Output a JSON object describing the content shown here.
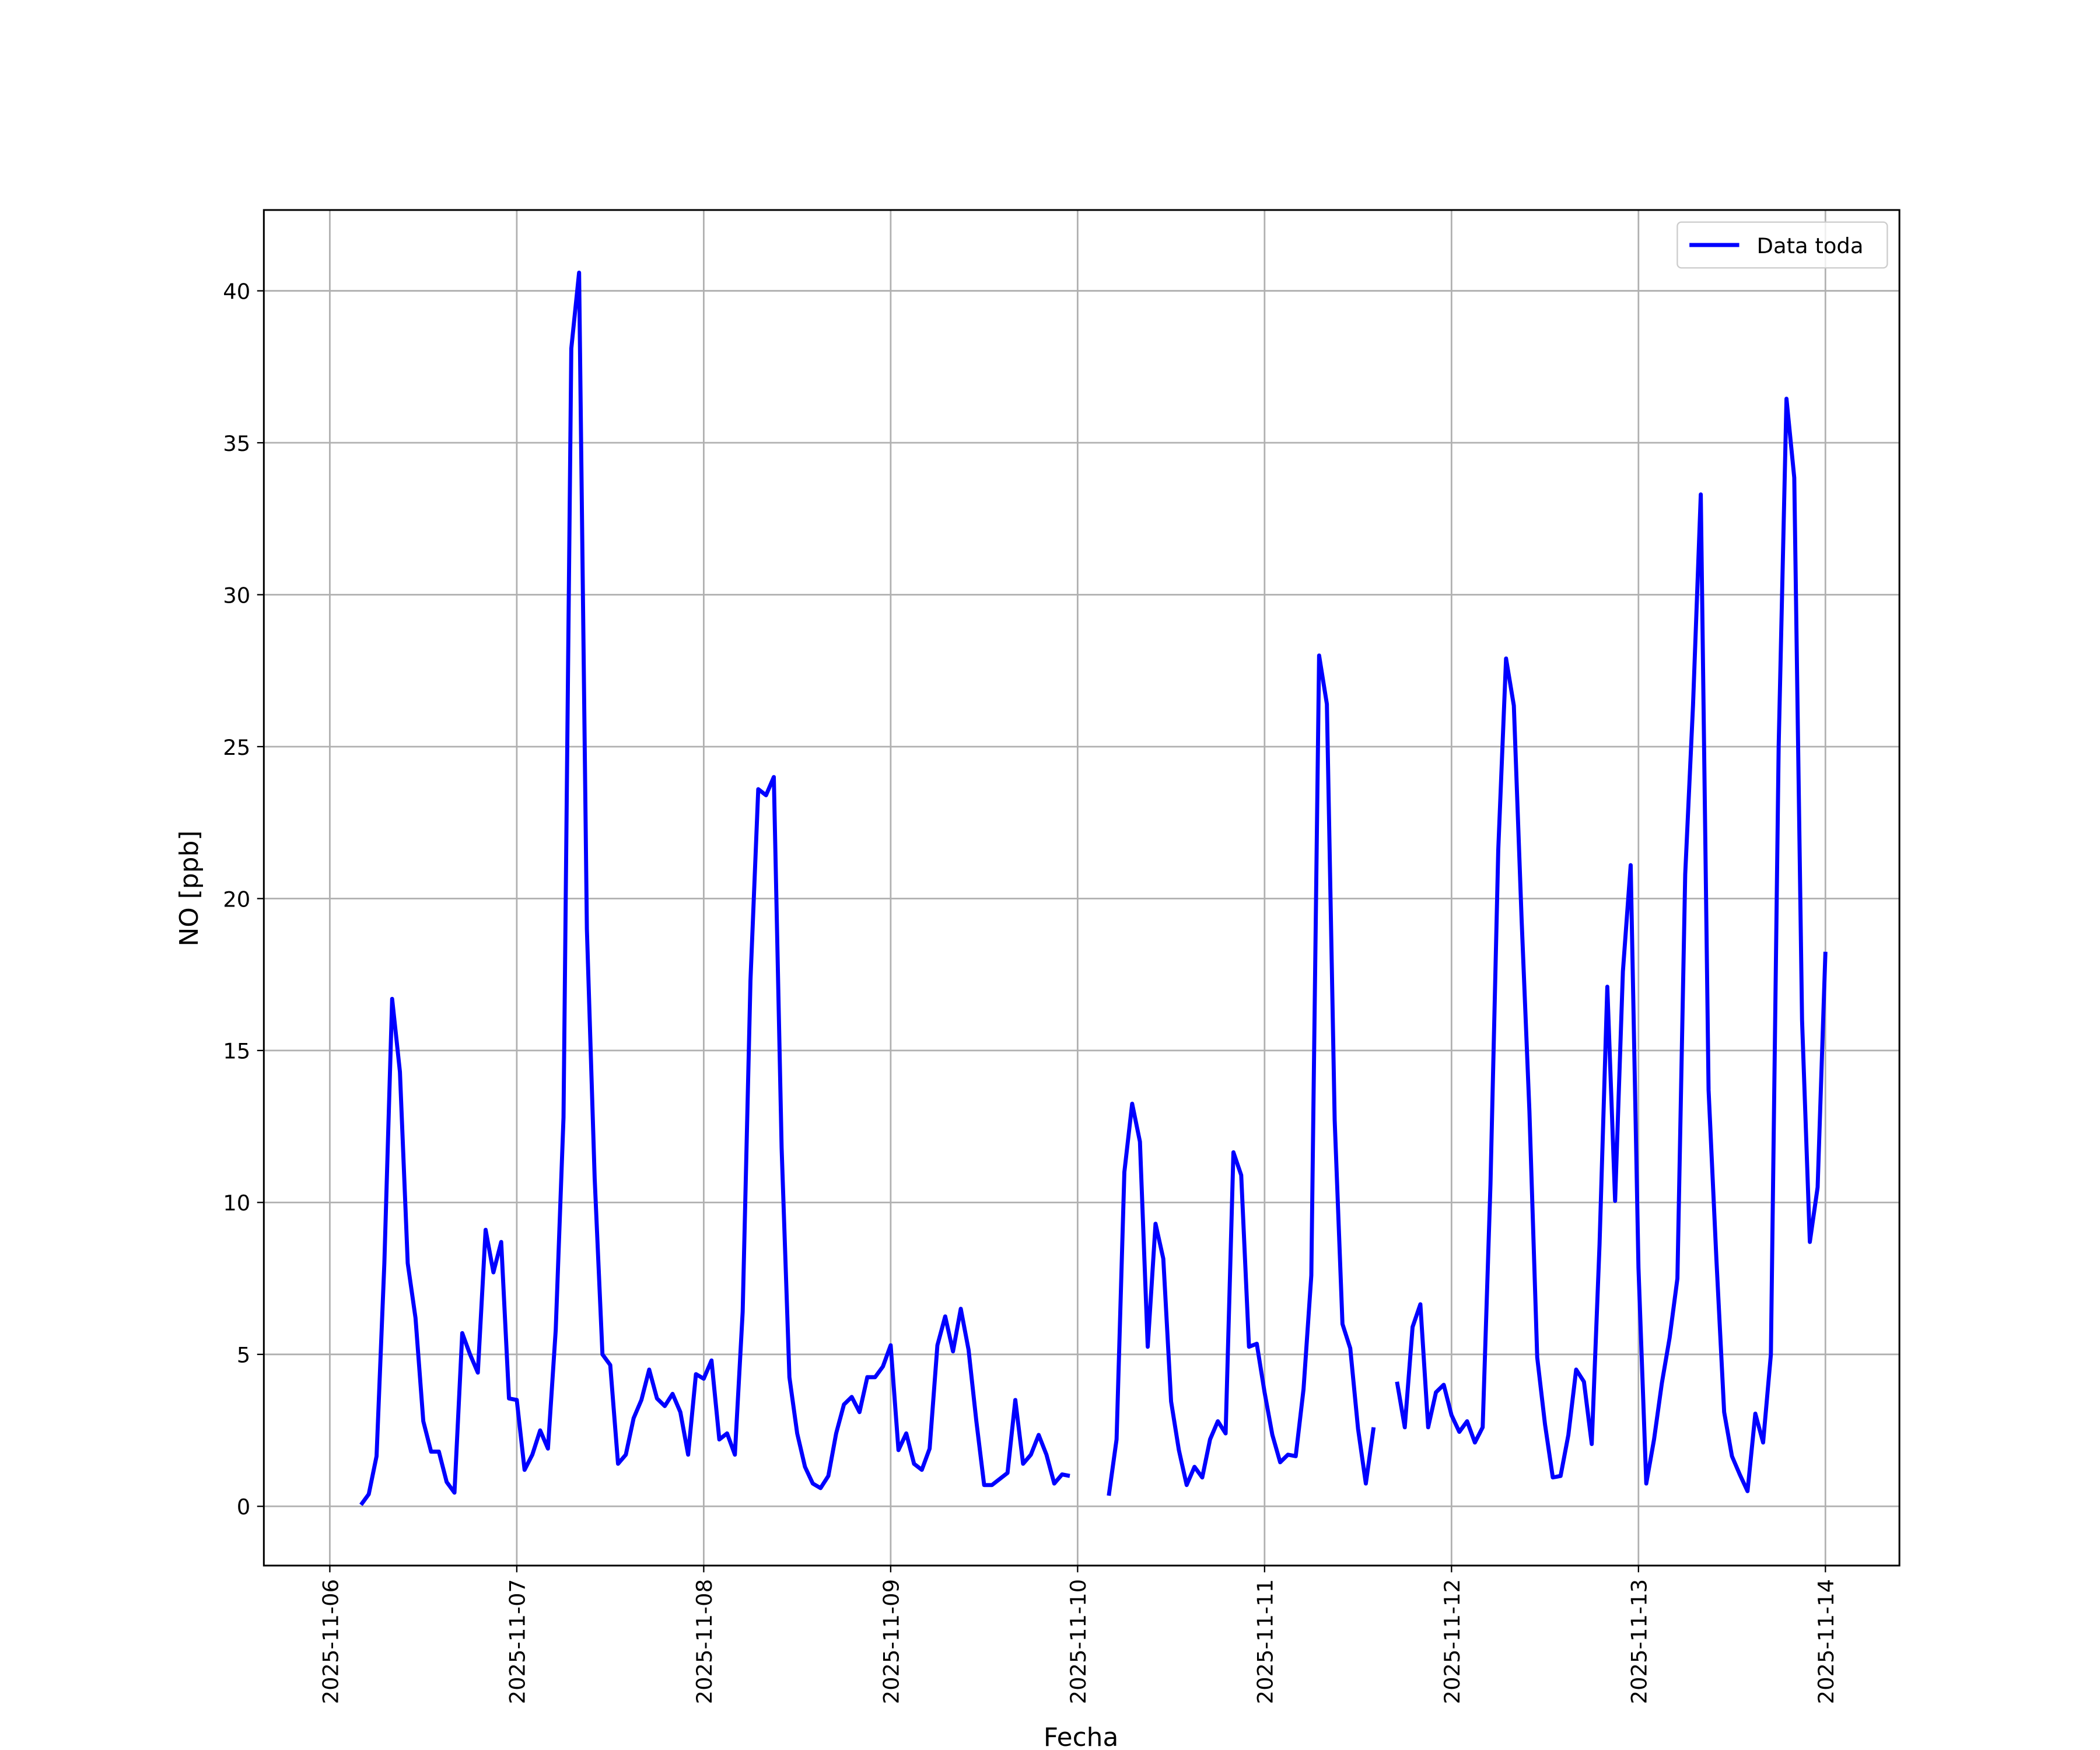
{
  "chart_data": {
    "type": "line",
    "xlabel": "Fecha",
    "ylabel": "NO [ppb]",
    "x": [
      4,
      5,
      6,
      7,
      8,
      9,
      10,
      11,
      12,
      13,
      14,
      15,
      16,
      17,
      18,
      19,
      20,
      21,
      22,
      23,
      24,
      25,
      26,
      27,
      28,
      29,
      30,
      31,
      32,
      33,
      34,
      35,
      36,
      37,
      38,
      39,
      40,
      41,
      42,
      43,
      44,
      45,
      46,
      47,
      48,
      49,
      50,
      51,
      52,
      53,
      54,
      55,
      56,
      57,
      58,
      59,
      60,
      61,
      62,
      63,
      64,
      65,
      66,
      67,
      68,
      69,
      70,
      71,
      72,
      73,
      74,
      75,
      76,
      77,
      78,
      79,
      80,
      81,
      82,
      83,
      84,
      85,
      86,
      87,
      88,
      89,
      90,
      91,
      92,
      93,
      94,
      95,
      96,
      97,
      98,
      99,
      100,
      101,
      102,
      103,
      104,
      105,
      106,
      107,
      108,
      109,
      110,
      111,
      112,
      113,
      114,
      115,
      116,
      117,
      118,
      119,
      120,
      121,
      122,
      123,
      124,
      125,
      126,
      127,
      128,
      129,
      130,
      131,
      132,
      133,
      134,
      135,
      136,
      137,
      138,
      139,
      140,
      141,
      142,
      143,
      144,
      145,
      146,
      147,
      148,
      149,
      150,
      151,
      152,
      153,
      154,
      155,
      156,
      157,
      158,
      159,
      160,
      161,
      162,
      163,
      164,
      165,
      166,
      167,
      168,
      169,
      170,
      171,
      172,
      173,
      174,
      175,
      176,
      177,
      178,
      179,
      180,
      181,
      182,
      183,
      184,
      185,
      186,
      187,
      188,
      189,
      190,
      191,
      192
    ],
    "series": [
      {
        "name": "Data toda",
        "color": "#0000ff",
        "values": [
          0.05,
          0.4,
          1.65,
          8,
          16.7,
          14.3,
          8,
          6.2,
          2.8,
          1.8,
          1.8,
          0.8,
          0.45,
          5.7,
          5.0,
          4.4,
          9.1,
          7.7,
          8.7,
          3.55,
          3.5,
          1.2,
          1.7,
          2.5,
          1.9,
          5.8,
          12.8,
          38.1,
          40.6,
          19,
          10.8,
          5.0,
          4.65,
          1.4,
          1.7,
          2.9,
          3.5,
          4.5,
          3.55,
          3.3,
          3.7,
          3.1,
          1.7,
          4.35,
          4.2,
          4.8,
          2.2,
          2.4,
          1.7,
          6.4,
          17.3,
          23.6,
          23.4,
          24,
          11.8,
          4.25,
          2.4,
          1.3,
          0.75,
          0.6,
          1.0,
          2.4,
          3.35,
          3.6,
          3.1,
          4.25,
          4.25,
          4.6,
          5.3,
          1.85,
          2.4,
          1.4,
          1.2,
          1.9,
          5.3,
          6.25,
          5.1,
          6.5,
          5.15,
          2.8,
          0.7,
          0.7,
          0.9,
          1.1,
          3.5,
          1.4,
          1.7,
          2.35,
          1.7,
          0.75,
          1.05,
          1.0,
          null,
          null,
          null,
          null,
          0.35,
          2.2,
          11,
          13.25,
          12,
          5.25,
          9.3,
          8.15,
          3.45,
          1.85,
          0.7,
          1.3,
          0.95,
          2.2,
          2.8,
          2.4,
          11.65,
          10.9,
          5.25,
          5.35,
          3.75,
          2.35,
          1.45,
          1.7,
          1.65,
          3.85,
          7.6,
          28,
          26.4,
          12.7,
          6.0,
          5.2,
          2.55,
          0.75,
          2.6,
          null,
          null,
          4.1,
          2.6,
          5.9,
          6.65,
          2.6,
          3.75,
          4.0,
          3.0,
          2.45,
          2.8,
          2.1,
          2.6,
          10.6,
          21.6,
          27.9,
          26.35,
          19.3,
          13,
          4.9,
          2.7,
          0.95,
          1.0,
          2.35,
          4.5,
          4.1,
          2.05,
          8.6,
          17.1,
          10.05,
          17.6,
          21.1,
          7.85,
          0.75,
          2.2,
          4.05,
          5.55,
          7.5,
          20.8,
          26.35,
          33.3,
          13.7,
          8.15,
          3.1,
          1.65,
          1.05,
          0.5,
          3.05,
          2.1,
          5.0,
          25.05,
          36.45,
          33.85,
          16,
          8.7,
          10.5,
          18.25
        ]
      }
    ],
    "xlim": [
      -8.47,
      201.5
    ],
    "xticks": [
      {
        "value": 0,
        "label": "2025-11-06"
      },
      {
        "value": 24,
        "label": "2025-11-07"
      },
      {
        "value": 48,
        "label": "2025-11-08"
      },
      {
        "value": 72,
        "label": "2025-11-09"
      },
      {
        "value": 96,
        "label": "2025-11-10"
      },
      {
        "value": 120,
        "label": "2025-11-11"
      },
      {
        "value": 144,
        "label": "2025-11-12"
      },
      {
        "value": 168,
        "label": "2025-11-13"
      },
      {
        "value": 192,
        "label": "2025-11-14"
      }
    ],
    "ylim": [
      -1.95,
      42.66
    ],
    "yticks": [
      0,
      5,
      10,
      15,
      20,
      25,
      30,
      35,
      40
    ],
    "grid": true,
    "legend": "upper right"
  }
}
